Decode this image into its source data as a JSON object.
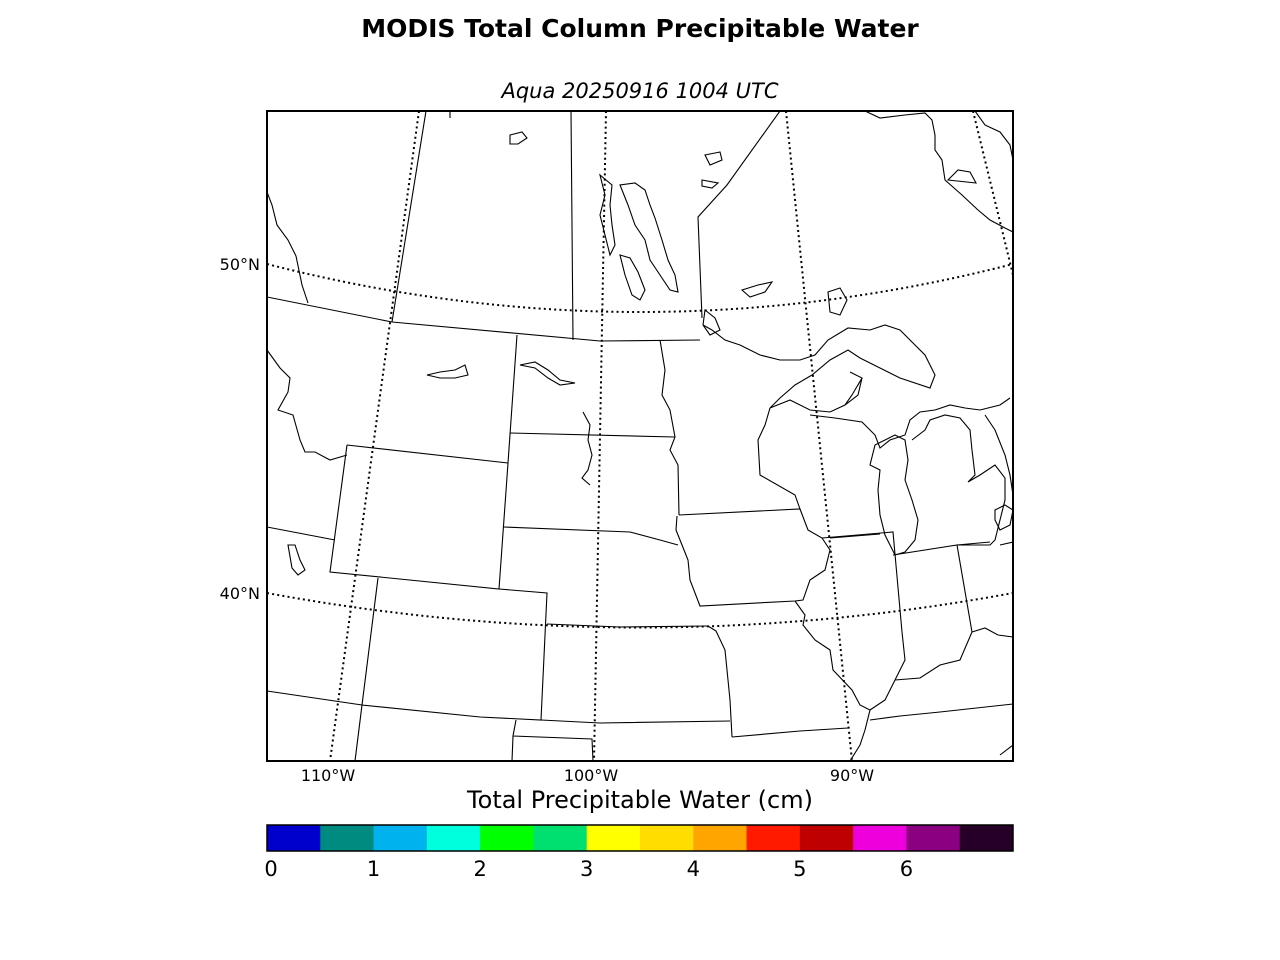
{
  "title": "MODIS Total Column Precipitable Water",
  "subtitle": "Aqua 20250916 1004 UTC",
  "map": {
    "lat_labels": [
      {
        "text": "50°N",
        "lat": 50
      },
      {
        "text": "40°N",
        "lat": 40
      }
    ],
    "lon_labels": [
      {
        "text": "110°W",
        "lon": -110
      },
      {
        "text": "100°W",
        "lon": -100
      },
      {
        "text": "90°W",
        "lon": -90
      }
    ]
  },
  "colorbar": {
    "title": "Total Precipitable Water (cm)",
    "min": 0,
    "max": 7,
    "step": 0.5,
    "colors": [
      "#0000cd",
      "#008b80",
      "#00b2ee",
      "#00ffdd",
      "#00ff00",
      "#00e070",
      "#ffff00",
      "#ffdd00",
      "#ffa500",
      "#ff1a00",
      "#bf0000",
      "#ee00dd",
      "#8b0080",
      "#260026"
    ],
    "ticks": [
      "0",
      "1",
      "2",
      "3",
      "4",
      "5",
      "6"
    ]
  }
}
